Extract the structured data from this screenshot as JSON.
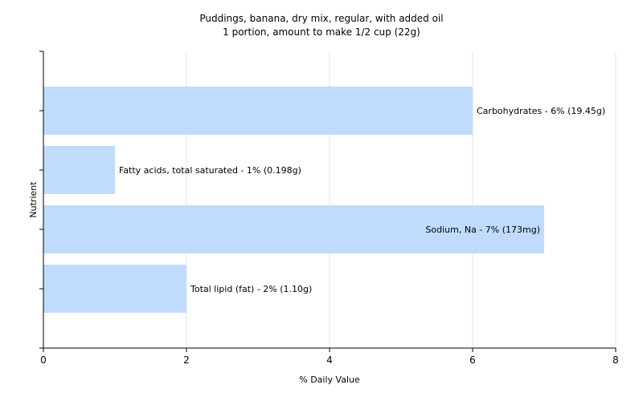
{
  "chart_data": {
    "type": "bar",
    "orientation": "horizontal",
    "title": "Puddings, banana, dry mix, regular, with added oil",
    "subtitle": "1 portion, amount to make 1/2 cup (22g)",
    "xlabel": "% Daily Value",
    "ylabel": "Nutrient",
    "xlim": [
      0,
      8
    ],
    "x_ticks": [
      0,
      2,
      4,
      6,
      8
    ],
    "grid": true,
    "categories": [
      "Carbohydrates",
      "Fatty acids, total saturated",
      "Sodium, Na",
      "Total lipid (fat)"
    ],
    "values": [
      6,
      1,
      7,
      2
    ],
    "data_labels": [
      "Carbohydrates - 6% (19.45g)",
      "Fatty acids, total saturated - 1% (0.198g)",
      "Sodium, Na - 7% (173mg)",
      "Total lipid (fat) - 2% (1.10g)"
    ],
    "colors": {
      "bar": "#bfdcfc",
      "grid": "#e6e6e6",
      "axis": "#000000"
    }
  }
}
